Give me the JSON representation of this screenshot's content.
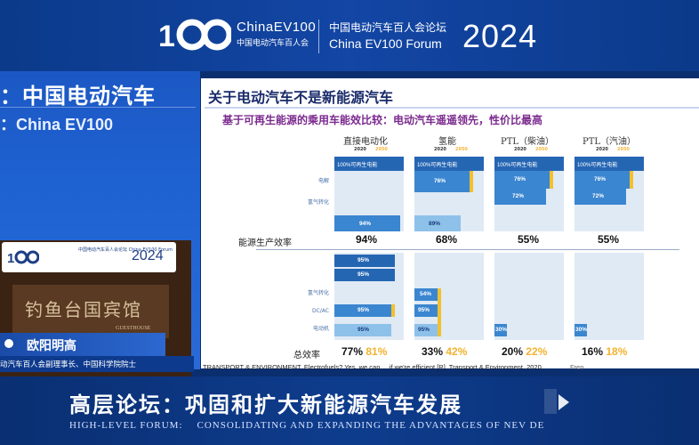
{
  "header": {
    "logo_en": "ChinaEV100",
    "logo_cn": "中国电动汽车百人会",
    "forum_cn": "中国电动汽车百人会论坛",
    "forum_en": "China EV100 Forum",
    "year": "2024"
  },
  "left_panel": {
    "title_cn": "：中国电动汽车",
    "title_en": "：China EV100",
    "podium_card_text": "中国电动汽车百人会论坛 China EV100 Forum",
    "podium_card_year": "2024",
    "podium_plaque": "钓鱼台国宾馆",
    "podium_plaque_sub": "GUESTHOUSE",
    "speaker_name": "欧阳明高",
    "speaker_title": "动汽车百人会副理事长、中国科学院院士"
  },
  "slide": {
    "title": "关于电动汽车不是新能源汽车",
    "subtitle": "基于可再生能源的乘用车能效比较：电动汽车遥遥领先，性价比最高",
    "columns": [
      {
        "label": "直接电动化",
        "year_a": "2020",
        "year_b": "2050"
      },
      {
        "label": "氢能",
        "year_a": "2020",
        "year_b": "2050"
      },
      {
        "label": "PTL（柴油）",
        "year_a": "2020",
        "year_b": "2050"
      },
      {
        "label": "PTL（汽油）",
        "year_a": "2020",
        "year_b": "2050"
      }
    ],
    "top_bar_label": "100%可再生电能",
    "upper_values": [
      [
        "94%"
      ],
      [
        "76%",
        "89%"
      ],
      [
        "76%",
        "72%"
      ],
      [
        "76%",
        "72%"
      ]
    ],
    "row_labels_upper": [
      "电解",
      "氢气转化",
      "能源生产效率"
    ],
    "production_efficiency_label": "能源生产效率",
    "production_efficiency": [
      "94%",
      "68%",
      "55%",
      "55%"
    ],
    "lower_values": [
      [
        "95%",
        "95%",
        "95%",
        "95%"
      ],
      [
        "54%",
        "95%",
        "95%"
      ],
      [
        "30%"
      ],
      [
        "30%"
      ]
    ],
    "row_labels_lower": [
      "氢气转化",
      "DC/AC",
      "电动机"
    ],
    "total_efficiency_label": "总效率",
    "total_efficiency": [
      {
        "a": "77%",
        "b": "81%"
      },
      {
        "a": "33%",
        "b": "42%"
      },
      {
        "a": "20%",
        "b": "22%"
      },
      {
        "a": "16%",
        "b": "18%"
      }
    ],
    "source": "TRANSPORT & ENVIRONMENT. Electrofuels? Yes, we can ... if we're efficient [R]. Transport & Environment, 2020.",
    "source_tail": "Fren"
  },
  "footer": {
    "title_cn": "高层论坛：巩固和扩大新能源汽车发展",
    "subtitle_en_left": "HIGH-LEVEL FORUM:",
    "subtitle_en_right": "CONSOLIDATING AND EXPANDING THE ADVANTAGES OF NEV DE"
  },
  "colors": {
    "banner_blue": "#0b3a8a",
    "panel_blue": "#1e62d2",
    "bar_blue": "#3b86d0",
    "accent_yellow": "#f2c02c",
    "subtitle_purple": "#7b2a8e"
  }
}
